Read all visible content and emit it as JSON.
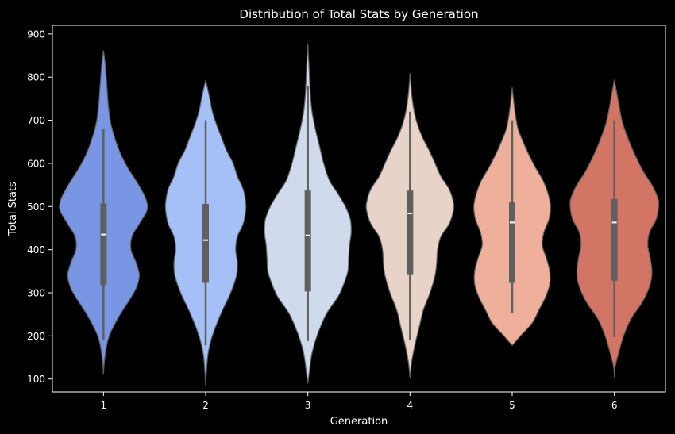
{
  "chart_data": {
    "type": "violin",
    "title": "Distribution of Total Stats by Generation",
    "xlabel": "Generation",
    "ylabel": "Total Stats",
    "categories": [
      "1",
      "2",
      "3",
      "4",
      "5",
      "6"
    ],
    "ylim": [
      70,
      920
    ],
    "y_ticks": [
      100,
      200,
      300,
      400,
      500,
      600,
      700,
      800,
      900
    ],
    "background": "#000000",
    "edge_color": "#5f5f5f",
    "colors": [
      "#7896e3",
      "#a4c0f6",
      "#cfdaec",
      "#e7d3c8",
      "#eeb09a",
      "#d27565"
    ],
    "violins": [
      {
        "category": "1",
        "median": 435,
        "q1": 318,
        "q3": 507,
        "whisker_low": 192,
        "whisker_high": 680,
        "density": [
          [
            110,
            0
          ],
          [
            140,
            1
          ],
          [
            180,
            4
          ],
          [
            210,
            9
          ],
          [
            250,
            20
          ],
          [
            280,
            30
          ],
          [
            310,
            39
          ],
          [
            340,
            43
          ],
          [
            370,
            39
          ],
          [
            400,
            33
          ],
          [
            430,
            34
          ],
          [
            460,
            43
          ],
          [
            490,
            52
          ],
          [
            510,
            52
          ],
          [
            530,
            48
          ],
          [
            560,
            39
          ],
          [
            590,
            29
          ],
          [
            620,
            21
          ],
          [
            650,
            15
          ],
          [
            690,
            9
          ],
          [
            730,
            6
          ],
          [
            780,
            4
          ],
          [
            830,
            2
          ],
          [
            862,
            0
          ]
        ]
      },
      {
        "category": "2",
        "median": 422,
        "q1": 323,
        "q3": 506,
        "whisker_low": 178,
        "whisker_high": 700,
        "density": [
          [
            85,
            0
          ],
          [
            120,
            1
          ],
          [
            160,
            3
          ],
          [
            200,
            8
          ],
          [
            250,
            18
          ],
          [
            300,
            30
          ],
          [
            340,
            37
          ],
          [
            370,
            38
          ],
          [
            400,
            36
          ],
          [
            430,
            38
          ],
          [
            460,
            45
          ],
          [
            490,
            48
          ],
          [
            510,
            48
          ],
          [
            540,
            45
          ],
          [
            570,
            38
          ],
          [
            600,
            33
          ],
          [
            630,
            25
          ],
          [
            660,
            19
          ],
          [
            690,
            13
          ],
          [
            720,
            8
          ],
          [
            750,
            5
          ],
          [
            793,
            0
          ]
        ]
      },
      {
        "category": "3",
        "median": 433,
        "q1": 303,
        "q3": 537,
        "whisker_low": 188,
        "whisker_high": 780,
        "density": [
          [
            90,
            0
          ],
          [
            120,
            2
          ],
          [
            160,
            5
          ],
          [
            200,
            11
          ],
          [
            250,
            22
          ],
          [
            290,
            36
          ],
          [
            320,
            43
          ],
          [
            350,
            48
          ],
          [
            380,
            49
          ],
          [
            410,
            50
          ],
          [
            440,
            52
          ],
          [
            470,
            51
          ],
          [
            500,
            45
          ],
          [
            530,
            36
          ],
          [
            560,
            26
          ],
          [
            600,
            19
          ],
          [
            640,
            14
          ],
          [
            680,
            9
          ],
          [
            720,
            5
          ],
          [
            760,
            3
          ],
          [
            800,
            2
          ],
          [
            840,
            1
          ],
          [
            877,
            0
          ]
        ]
      },
      {
        "category": "4",
        "median": 484,
        "q1": 343,
        "q3": 537,
        "whisker_low": 190,
        "whisker_high": 720,
        "density": [
          [
            102,
            0
          ],
          [
            140,
            2
          ],
          [
            180,
            6
          ],
          [
            220,
            11
          ],
          [
            260,
            16
          ],
          [
            300,
            24
          ],
          [
            340,
            30
          ],
          [
            370,
            32
          ],
          [
            400,
            33
          ],
          [
            430,
            37
          ],
          [
            460,
            47
          ],
          [
            490,
            52
          ],
          [
            510,
            52
          ],
          [
            540,
            47
          ],
          [
            570,
            37
          ],
          [
            600,
            30
          ],
          [
            630,
            23
          ],
          [
            660,
            15
          ],
          [
            690,
            9
          ],
          [
            720,
            5
          ],
          [
            760,
            2
          ],
          [
            809,
            0
          ]
        ]
      },
      {
        "category": "5",
        "median": 463,
        "q1": 323,
        "q3": 510,
        "whisker_low": 253,
        "whisker_high": 700,
        "density": [
          [
            178,
            0
          ],
          [
            200,
            10
          ],
          [
            230,
            24
          ],
          [
            260,
            32
          ],
          [
            290,
            40
          ],
          [
            320,
            45
          ],
          [
            350,
            45
          ],
          [
            380,
            41
          ],
          [
            410,
            36
          ],
          [
            440,
            38
          ],
          [
            470,
            44
          ],
          [
            500,
            46
          ],
          [
            530,
            43
          ],
          [
            560,
            37
          ],
          [
            590,
            28
          ],
          [
            620,
            20
          ],
          [
            650,
            13
          ],
          [
            680,
            7
          ],
          [
            710,
            4
          ],
          [
            740,
            2
          ],
          [
            776,
            0
          ]
        ]
      },
      {
        "category": "6",
        "median": 463,
        "q1": 328,
        "q3": 517,
        "whisker_low": 197,
        "whisker_high": 700,
        "density": [
          [
            104,
            0
          ],
          [
            130,
            1
          ],
          [
            160,
            5
          ],
          [
            200,
            11
          ],
          [
            240,
            20
          ],
          [
            280,
            34
          ],
          [
            320,
            43
          ],
          [
            350,
            45
          ],
          [
            380,
            43
          ],
          [
            410,
            40
          ],
          [
            440,
            42
          ],
          [
            470,
            50
          ],
          [
            500,
            53
          ],
          [
            520,
            52
          ],
          [
            550,
            45
          ],
          [
            580,
            35
          ],
          [
            610,
            27
          ],
          [
            640,
            20
          ],
          [
            670,
            14
          ],
          [
            700,
            9
          ],
          [
            740,
            5
          ],
          [
            794,
            0
          ]
        ]
      }
    ]
  }
}
